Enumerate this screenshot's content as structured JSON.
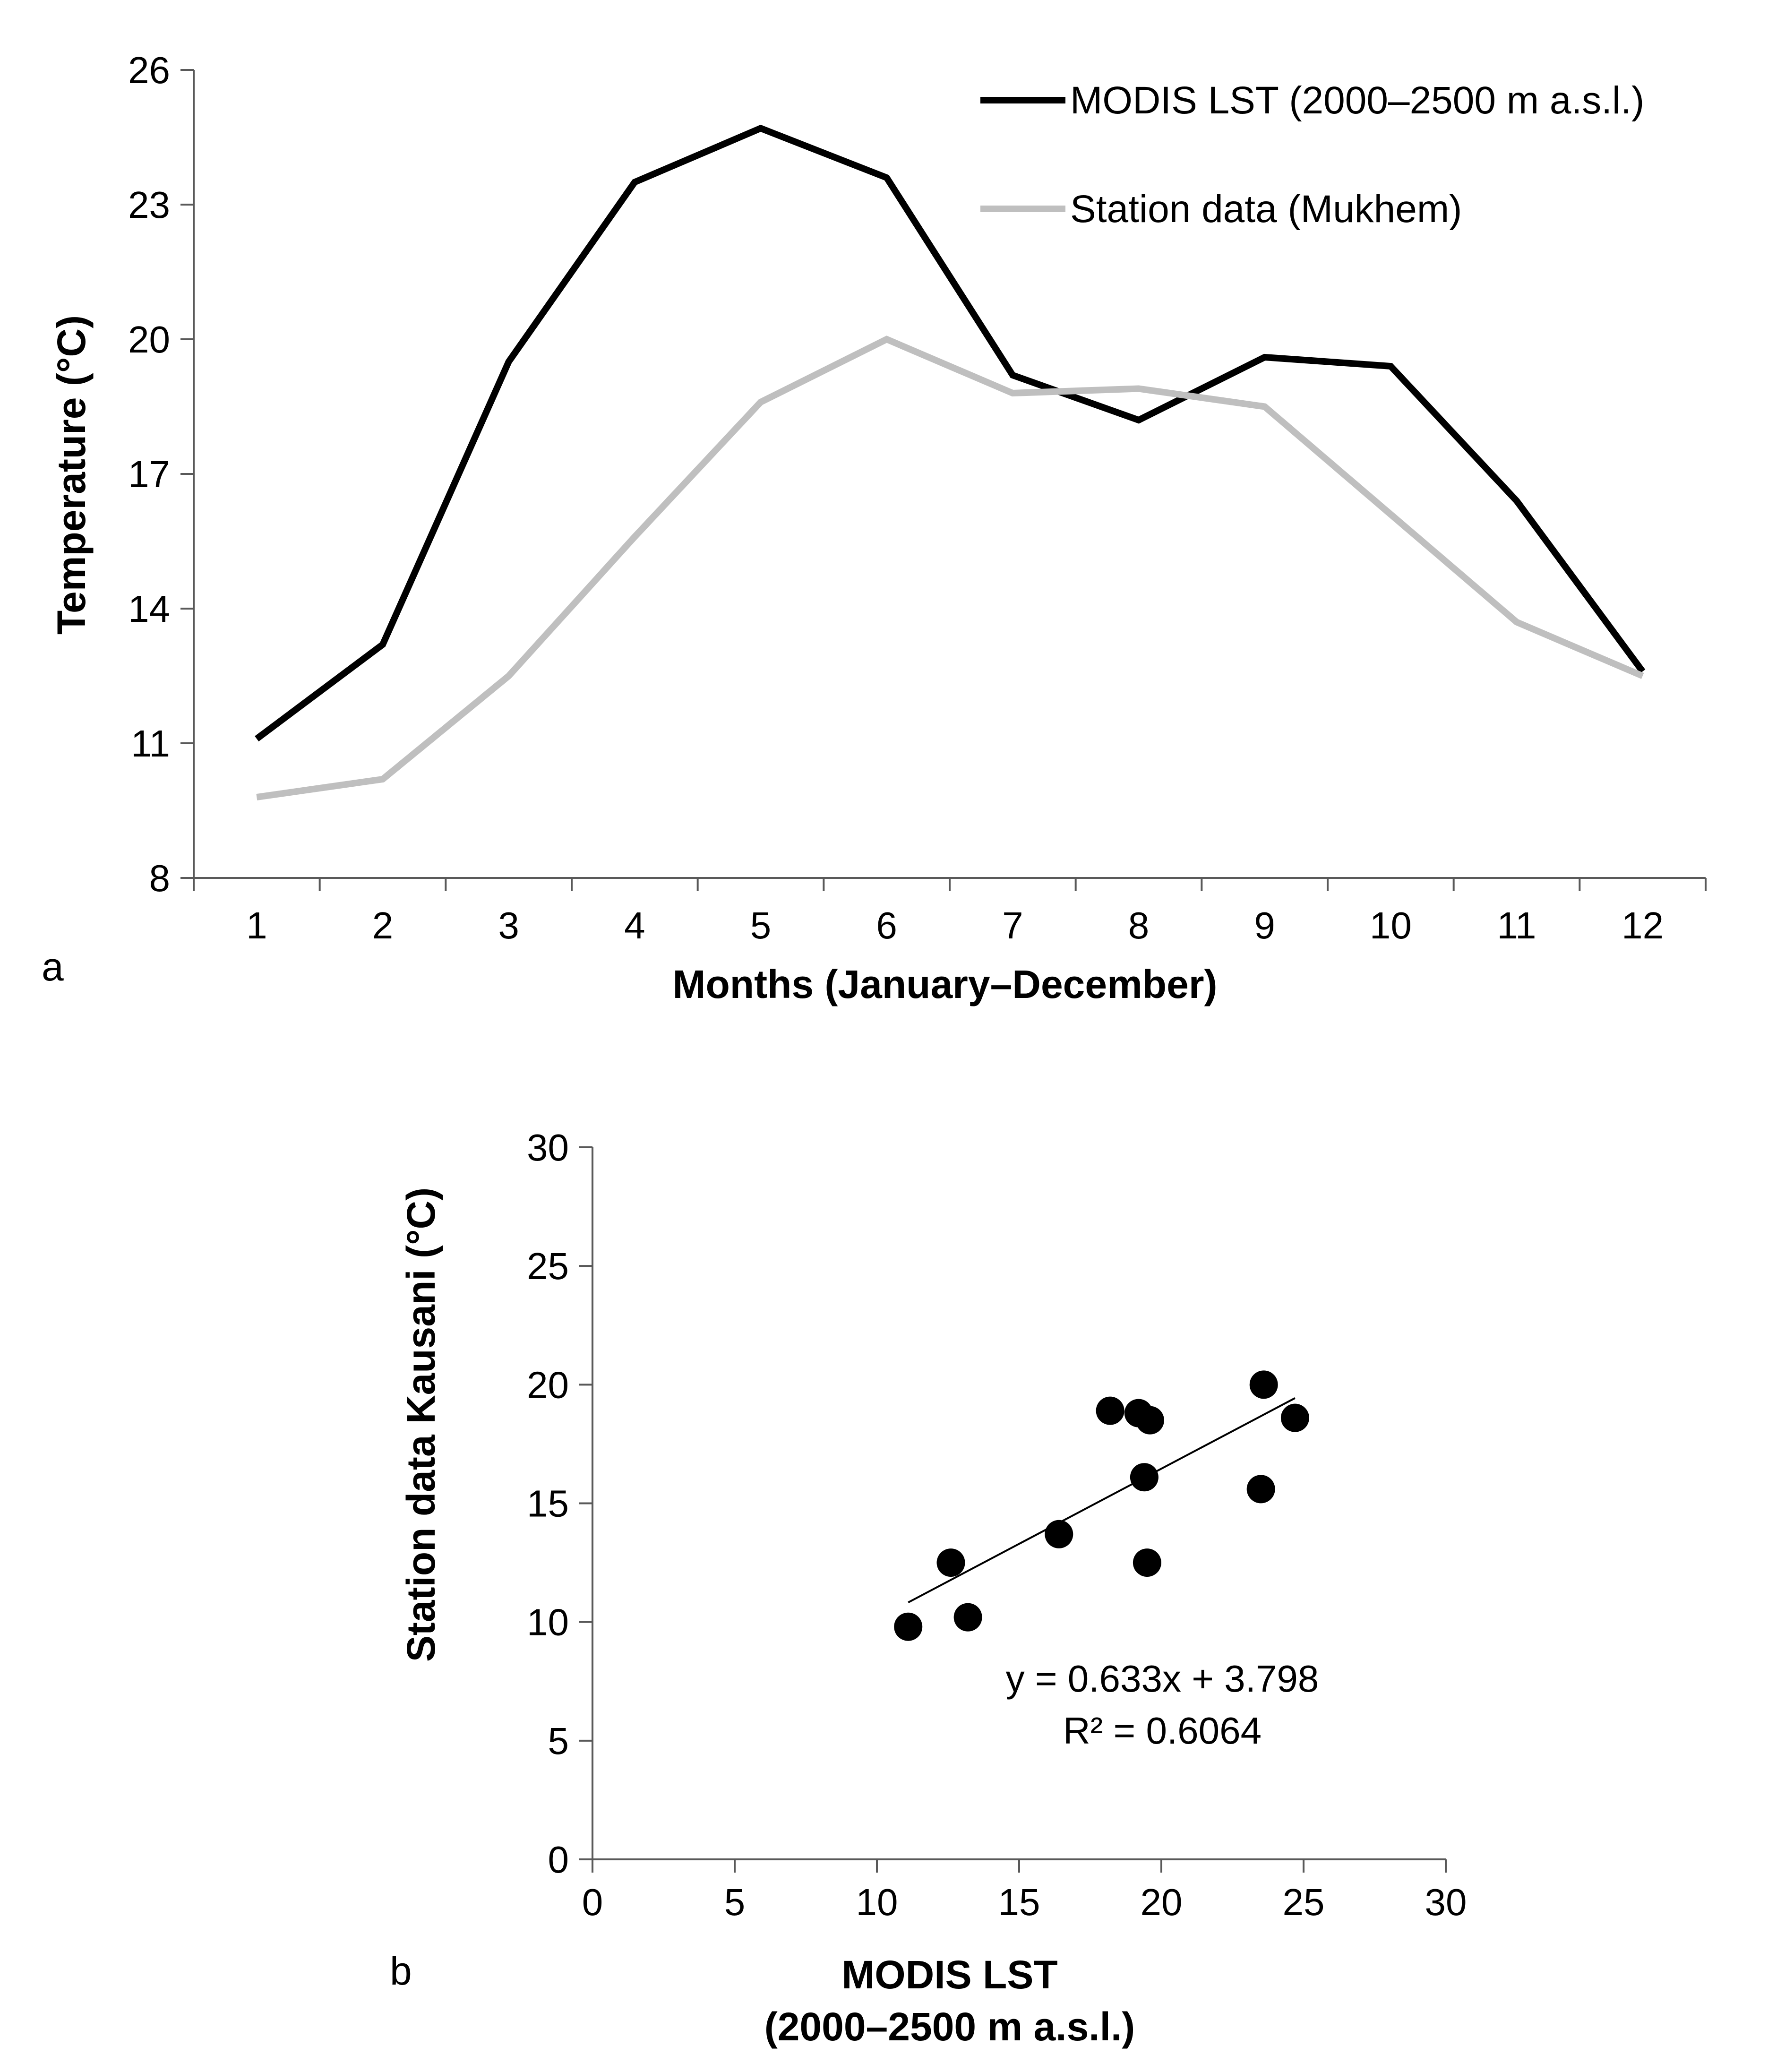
{
  "chart_data": [
    {
      "type": "line",
      "panel_label": "a",
      "title": "",
      "xlabel": "Months (January–December)",
      "ylabel": "Temperature (°C)",
      "categories": [
        1,
        2,
        3,
        4,
        5,
        6,
        7,
        8,
        9,
        10,
        11,
        12
      ],
      "ylim": [
        8,
        26
      ],
      "yticks": [
        8,
        11,
        14,
        17,
        20,
        23,
        26
      ],
      "series": [
        {
          "name": "MODIS LST (2000–2500 m a.s.l.)",
          "color": "#000000",
          "values": [
            11.1,
            13.2,
            19.5,
            23.5,
            24.7,
            23.6,
            19.2,
            18.2,
            19.6,
            19.4,
            16.4,
            12.6
          ]
        },
        {
          "name": "Station data (Mukhem)",
          "color": "#bfbfbf",
          "values": [
            9.8,
            10.2,
            12.5,
            15.6,
            18.6,
            20.0,
            18.8,
            18.9,
            18.5,
            16.1,
            13.7,
            12.5
          ]
        }
      ],
      "legend": "top-right",
      "grid": false
    },
    {
      "type": "scatter",
      "panel_label": "b",
      "title": "",
      "xlabel_lines": [
        "MODIS LST",
        "(2000–2500 m a.s.l.)"
      ],
      "ylabel": "Station data Kausani (°C)",
      "xlim": [
        0,
        30
      ],
      "ylim": [
        0,
        30
      ],
      "xticks": [
        0,
        5,
        10,
        15,
        20,
        25,
        30
      ],
      "yticks": [
        0,
        5,
        10,
        15,
        20,
        25,
        30
      ],
      "points": [
        {
          "x": 11.1,
          "y": 9.8
        },
        {
          "x": 13.2,
          "y": 10.2
        },
        {
          "x": 19.5,
          "y": 12.5
        },
        {
          "x": 23.5,
          "y": 15.6
        },
        {
          "x": 24.7,
          "y": 18.6
        },
        {
          "x": 23.6,
          "y": 20.0
        },
        {
          "x": 19.2,
          "y": 18.8
        },
        {
          "x": 18.2,
          "y": 18.9
        },
        {
          "x": 19.6,
          "y": 18.5
        },
        {
          "x": 19.4,
          "y": 16.1
        },
        {
          "x": 16.4,
          "y": 13.7
        },
        {
          "x": 12.6,
          "y": 12.5
        }
      ],
      "trendline": {
        "slope": 0.633,
        "intercept": 3.798,
        "x_range": [
          11.1,
          24.7
        ]
      },
      "equation": "y = 0.633x + 3.798",
      "r_squared": "R² = 0.6064",
      "grid": false
    }
  ]
}
